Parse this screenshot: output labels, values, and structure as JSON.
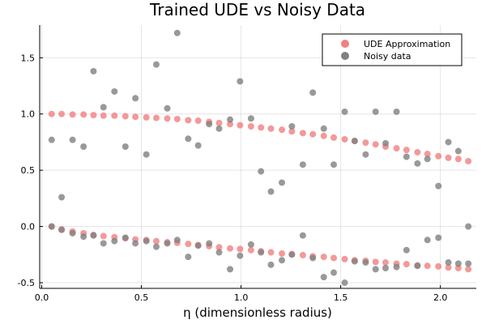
{
  "chart_data": {
    "type": "scatter",
    "title": "Trained UDE vs Noisy Data",
    "xlabel": "η (dimensionless radius)",
    "ylabel": "",
    "xlim": [
      -0.01,
      2.18
    ],
    "ylim": [
      -0.55,
      1.79
    ],
    "xticks": [
      0.0,
      0.5,
      1.0,
      1.5,
      2.0
    ],
    "xtick_labels": [
      "0.0",
      "0.5",
      "1.0",
      "1.5",
      "2.0"
    ],
    "yticks": [
      -0.5,
      0.0,
      0.5,
      1.0,
      1.5
    ],
    "ytick_labels": [
      "-0.5",
      "0.0",
      "0.5",
      "1.0",
      "1.5"
    ],
    "grid": true,
    "legend_position": "top-right",
    "series": [
      {
        "name": "UDE Approximation",
        "color": "#f08080",
        "x": [
          0.05,
          0.1,
          0.155,
          0.21,
          0.26,
          0.31,
          0.365,
          0.42,
          0.47,
          0.525,
          0.575,
          0.63,
          0.68,
          0.735,
          0.785,
          0.84,
          0.89,
          0.945,
          0.995,
          1.05,
          1.1,
          1.15,
          1.205,
          1.255,
          1.31,
          1.36,
          1.415,
          1.465,
          1.52,
          1.57,
          1.625,
          1.675,
          1.725,
          1.78,
          1.83,
          1.885,
          1.935,
          1.99,
          2.04,
          2.09,
          2.14,
          0.05,
          0.1,
          0.155,
          0.21,
          0.26,
          0.31,
          0.365,
          0.42,
          0.47,
          0.525,
          0.575,
          0.63,
          0.68,
          0.735,
          0.785,
          0.84,
          0.89,
          0.945,
          0.995,
          1.05,
          1.1,
          1.15,
          1.205,
          1.255,
          1.31,
          1.36,
          1.415,
          1.465,
          1.52,
          1.57,
          1.625,
          1.675,
          1.725,
          1.78,
          1.83,
          1.885,
          1.935,
          1.99,
          2.04,
          2.09,
          2.14
        ],
        "y": [
          1.0,
          1.0,
          0.995,
          0.995,
          0.99,
          0.985,
          0.985,
          0.98,
          0.975,
          0.97,
          0.965,
          0.96,
          0.955,
          0.945,
          0.94,
          0.93,
          0.92,
          0.91,
          0.9,
          0.89,
          0.88,
          0.87,
          0.86,
          0.845,
          0.83,
          0.82,
          0.805,
          0.79,
          0.775,
          0.76,
          0.745,
          0.73,
          0.71,
          0.695,
          0.68,
          0.66,
          0.645,
          0.625,
          0.61,
          0.6,
          0.58,
          0.0,
          -0.025,
          -0.045,
          -0.06,
          -0.075,
          -0.085,
          -0.095,
          -0.105,
          -0.115,
          -0.12,
          -0.13,
          -0.14,
          -0.145,
          -0.155,
          -0.165,
          -0.175,
          -0.185,
          -0.195,
          -0.2,
          -0.21,
          -0.22,
          -0.23,
          -0.24,
          -0.245,
          -0.255,
          -0.265,
          -0.27,
          -0.28,
          -0.29,
          -0.3,
          -0.305,
          -0.315,
          -0.32,
          -0.33,
          -0.335,
          -0.345,
          -0.35,
          -0.355,
          -0.365,
          -0.37,
          -0.38
        ]
      },
      {
        "name": "Noisy data",
        "color": "#808080",
        "x": [
          0.05,
          0.1,
          0.155,
          0.21,
          0.26,
          0.31,
          0.365,
          0.42,
          0.47,
          0.525,
          0.575,
          0.63,
          0.68,
          0.735,
          0.785,
          0.84,
          0.89,
          0.945,
          0.995,
          1.05,
          1.1,
          1.15,
          1.205,
          1.255,
          1.31,
          1.36,
          1.415,
          1.465,
          1.52,
          1.57,
          1.625,
          1.675,
          1.725,
          1.78,
          1.83,
          1.885,
          1.935,
          1.99,
          2.04,
          2.09,
          2.14,
          0.05,
          0.1,
          0.155,
          0.21,
          0.26,
          0.31,
          0.365,
          0.42,
          0.47,
          0.525,
          0.575,
          0.63,
          0.68,
          0.735,
          0.785,
          0.84,
          0.89,
          0.945,
          0.995,
          1.05,
          1.1,
          1.15,
          1.205,
          1.255,
          1.31,
          1.36,
          1.415,
          1.465,
          1.52,
          1.57,
          1.625,
          1.675,
          1.725,
          1.78,
          1.83,
          1.885,
          1.935,
          1.99,
          2.04,
          2.09,
          2.14
        ],
        "y": [
          0.77,
          0.26,
          0.77,
          0.71,
          1.38,
          1.06,
          1.2,
          0.71,
          1.14,
          0.64,
          1.44,
          1.05,
          1.72,
          0.78,
          0.72,
          0.91,
          0.87,
          0.95,
          1.29,
          0.96,
          0.49,
          0.31,
          0.39,
          0.89,
          0.55,
          1.19,
          0.87,
          0.55,
          1.02,
          0.76,
          0.64,
          1.02,
          0.74,
          1.02,
          0.62,
          0.56,
          0.6,
          0.36,
          0.75,
          0.67,
          0.0,
          0.0,
          -0.03,
          -0.06,
          -0.09,
          -0.08,
          -0.15,
          -0.13,
          -0.1,
          -0.15,
          -0.13,
          -0.18,
          -0.15,
          -0.12,
          -0.27,
          -0.17,
          -0.15,
          -0.23,
          -0.38,
          -0.26,
          -0.16,
          -0.23,
          -0.34,
          -0.3,
          -0.25,
          -0.08,
          -0.28,
          -0.45,
          -0.41,
          -0.5,
          -0.31,
          -0.32,
          -0.38,
          -0.37,
          -0.36,
          -0.21,
          -0.35,
          -0.12,
          -0.1,
          -0.32,
          -0.33,
          -0.33
        ]
      }
    ]
  }
}
